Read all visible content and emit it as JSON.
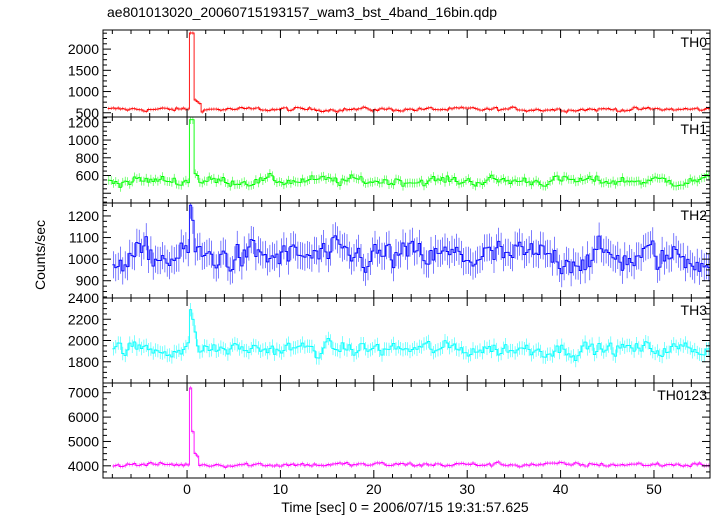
{
  "chart_data": {
    "type": "line",
    "title": "ae801013020_20060715193157_wam3_bst_4band_16bin.qdp",
    "xlabel": "Time [sec] 0 = 2006/07/15 19:31:57.625",
    "ylabel": "Counts/sec",
    "xlim": [
      -9,
      56
    ],
    "x_ticks": [
      "0",
      "10",
      "20",
      "30",
      "40",
      "50"
    ],
    "x_tick_values": [
      0,
      10,
      20,
      30,
      40,
      50
    ],
    "grid": false,
    "panels": [
      {
        "name": "TH0",
        "color": "#ff0000",
        "ylim": [
          400,
          2450
        ],
        "y_ticks": [
          "500",
          "1000",
          "1500",
          "2000"
        ],
        "y_tick_values": [
          500,
          1000,
          1500,
          2000
        ],
        "x_start": -8.5,
        "bin": 0.25,
        "baseline": 580,
        "noise": 45,
        "spikes": [
          [
            0.25,
            2380
          ],
          [
            0.5,
            2380
          ],
          [
            0.75,
            800
          ],
          [
            1.0,
            760
          ],
          [
            1.25,
            720
          ]
        ]
      },
      {
        "name": "TH1",
        "color": "#00ff00",
        "ylim": [
          290,
          1260
        ],
        "y_ticks": [
          "600",
          "800",
          "1000",
          "1200"
        ],
        "y_tick_values": [
          600,
          800,
          1000,
          1200
        ],
        "x_start": -8.5,
        "bin": 0.25,
        "baseline": 540,
        "noise": 55,
        "spikes": [
          [
            0.25,
            1230
          ],
          [
            0.5,
            1230
          ],
          [
            0.75,
            620
          ],
          [
            1.0,
            600
          ]
        ]
      },
      {
        "name": "TH2",
        "color": "#0000ff",
        "ylim": [
          820,
          1260
        ],
        "y_ticks": [
          "900",
          "1000",
          "1100",
          "1200"
        ],
        "y_tick_values": [
          900,
          1000,
          1100,
          1200
        ],
        "x_start": -8.0,
        "bin": 0.25,
        "baseline": 1010,
        "noise": 70,
        "spikes": [
          [
            0.25,
            1250
          ],
          [
            0.5,
            1180
          ]
        ]
      },
      {
        "name": "TH3",
        "color": "#00ffff",
        "ylim": [
          1600,
          2400
        ],
        "y_ticks": [
          "1800",
          "2000",
          "2200",
          "2400"
        ],
        "y_tick_values": [
          1800,
          2000,
          2200,
          2400
        ],
        "x_start": -8.0,
        "bin": 0.25,
        "baseline": 1920,
        "noise": 70,
        "spikes": [
          [
            0.25,
            2290
          ],
          [
            0.5,
            2200
          ],
          [
            0.75,
            2080
          ]
        ]
      },
      {
        "name": "TH0123",
        "color": "#ff00ff",
        "ylim": [
          3500,
          7400
        ],
        "y_ticks": [
          "4000",
          "5000",
          "6000",
          "7000"
        ],
        "y_tick_values": [
          4000,
          5000,
          6000,
          7000
        ],
        "x_start": -8.0,
        "bin": 0.25,
        "baseline": 4050,
        "noise": 90,
        "spikes": [
          [
            0.25,
            7200
          ],
          [
            0.5,
            5400
          ],
          [
            0.75,
            4500
          ],
          [
            1.0,
            4400
          ]
        ]
      }
    ]
  }
}
